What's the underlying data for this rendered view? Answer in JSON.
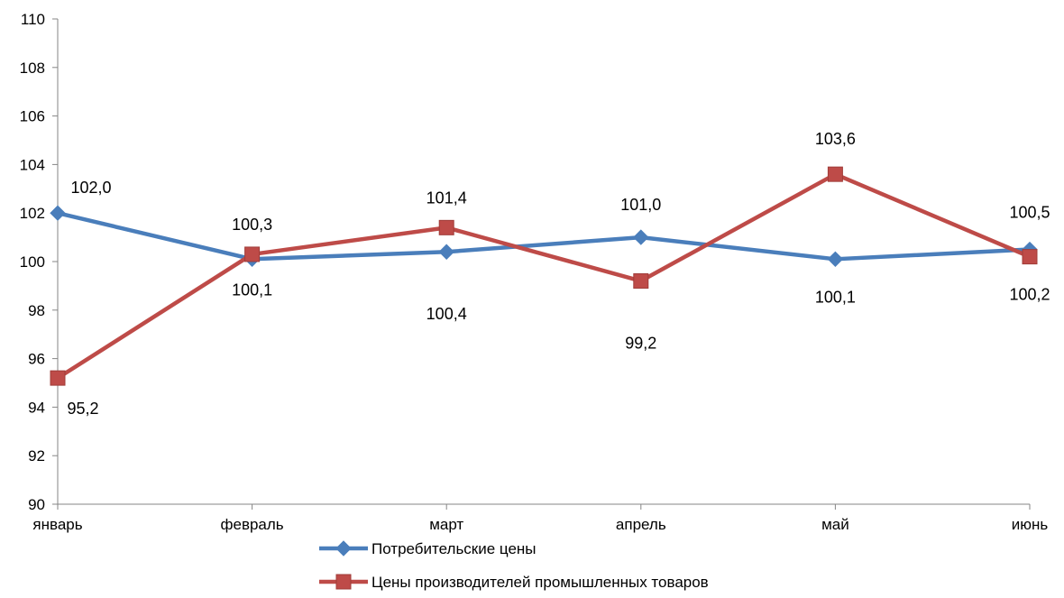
{
  "chart_data": {
    "type": "line",
    "categories": [
      "январь",
      "февраль",
      "март",
      "апрель",
      "май",
      "июнь"
    ],
    "series": [
      {
        "name": "Потребительские цены",
        "values": [
          102.0,
          100.1,
          100.4,
          101.0,
          100.1,
          100.5
        ],
        "labels": [
          "102,0",
          "100,1",
          "100,4",
          "101,0",
          "100,1",
          "100,5"
        ],
        "color": "#4a7ebb",
        "marker": "diamond"
      },
      {
        "name": "Цены производителей промышленных товаров",
        "values": [
          95.2,
          100.3,
          101.4,
          99.2,
          103.6,
          100.2
        ],
        "labels": [
          "95,2",
          "100,3",
          "101,4",
          "99,2",
          "103,6",
          "100,2"
        ],
        "color": "#be4b48",
        "marker": "square"
      }
    ],
    "ylim": [
      90,
      110
    ],
    "ytick_labels": [
      "90",
      "92",
      "94",
      "96",
      "98",
      "100",
      "102",
      "104",
      "106",
      "108",
      "110"
    ],
    "grid": false,
    "legend_position": "bottom",
    "title": "",
    "xlabel": "",
    "ylabel": ""
  }
}
